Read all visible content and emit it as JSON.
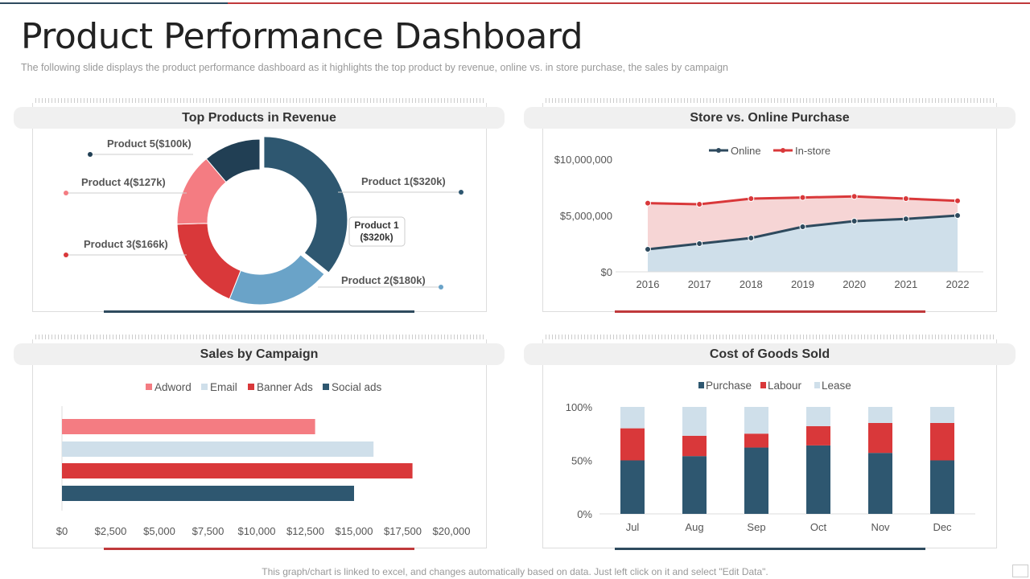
{
  "title": "Product Performance Dashboard",
  "subtitle": "The following  slide displays the product  performance  dashboard  as it highlights the top product  by revenue,  online vs.  in store purchase,  the sales by campaign",
  "footer": "This graph/chart is linked to excel,  and changes automatically based on data. Just left click on it and select \"Edit Data\".",
  "colors": {
    "dark_blue": "#2e5770",
    "navy": "#213f54",
    "light_blue": "#6aa3c8",
    "red": "#d9383a",
    "pink": "#f47c82",
    "pale_blue": "#cfdfea"
  },
  "chart_data": [
    {
      "type": "pie",
      "title": "Top Products in Revenue",
      "donut": true,
      "categories": [
        "Product 1",
        "Product 2",
        "Product 3",
        "Product 4",
        "Product 5"
      ],
      "values": [
        320,
        180,
        166,
        127,
        100
      ],
      "labels": [
        "Product 1($320k)",
        "Product 2($180k)",
        "Product 3($166k)",
        "Product 4($127k)",
        "Product 5($100k)"
      ],
      "callout": [
        "Product 1",
        "($320k)"
      ],
      "colors": [
        "#2e5770",
        "#6aa3c8",
        "#d9383a",
        "#f47c82",
        "#213f54"
      ]
    },
    {
      "type": "area",
      "title": "Store vs. Online Purchase",
      "x": [
        "2016",
        "2017",
        "2018",
        "2019",
        "2020",
        "2021",
        "2022"
      ],
      "series": [
        {
          "name": "Online",
          "color": "#2e4a5e",
          "fill": "#cfdfea",
          "values": [
            2000000,
            2500000,
            3000000,
            4000000,
            4500000,
            4700000,
            5000000
          ]
        },
        {
          "name": "In-store",
          "color": "#d9383a",
          "fill": "#f6d5d5",
          "values": [
            6100000,
            6000000,
            6500000,
            6600000,
            6700000,
            6500000,
            6300000
          ]
        }
      ],
      "yticks": [
        "$0",
        "$5,000,000",
        "$10,000,000"
      ],
      "ylim": [
        0,
        10000000
      ],
      "legend": "top"
    },
    {
      "type": "bar",
      "orientation": "horizontal",
      "title": "Sales by Campaign",
      "series": [
        {
          "name": "Adword",
          "color": "#f47c82",
          "value": 13000
        },
        {
          "name": "Email",
          "color": "#cfdfea",
          "value": 16000
        },
        {
          "name": "Banner Ads",
          "color": "#d9383a",
          "value": 18000
        },
        {
          "name": "Social ads",
          "color": "#2e5770",
          "value": 15000
        }
      ],
      "xticks": [
        "$0",
        "$2,500",
        "$5,000",
        "$7,500",
        "$10,000",
        "$12,500",
        "$15,000",
        "$17,500",
        "$20,000"
      ],
      "xlim": [
        0,
        20000
      ],
      "legend": "top"
    },
    {
      "type": "bar",
      "stacked": true,
      "title": "Cost of Goods Sold",
      "categories": [
        "Jul",
        "Aug",
        "Sep",
        "Oct",
        "Nov",
        "Dec"
      ],
      "series": [
        {
          "name": "Purchase",
          "color": "#2e5770",
          "values": [
            50,
            54,
            62,
            64,
            57,
            50
          ]
        },
        {
          "name": "Labour",
          "color": "#d9383a",
          "values": [
            30,
            19,
            13,
            18,
            28,
            35
          ]
        },
        {
          "name": "Lease",
          "color": "#cfdfea",
          "values": [
            20,
            27,
            25,
            18,
            15,
            15
          ]
        }
      ],
      "yticks": [
        "0%",
        "50%",
        "100%"
      ],
      "ylim": [
        0,
        100
      ],
      "legend": "top"
    }
  ]
}
